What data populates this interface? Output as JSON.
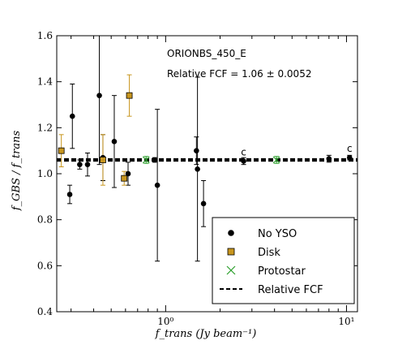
{
  "chart_data": {
    "type": "scatter",
    "title": "",
    "xlabel": "f_trans (Jy beam⁻¹)",
    "ylabel": "f_GBS / f_trans",
    "xscale": "log",
    "xlim": [
      0.25,
      11.5
    ],
    "ylim": [
      0.4,
      1.6
    ],
    "x_ticks": [
      {
        "value": 1,
        "label": "10⁰"
      },
      {
        "value": 10,
        "label": "10¹"
      }
    ],
    "y_ticks": [
      0.4,
      0.6,
      0.8,
      1.0,
      1.2,
      1.4,
      1.6
    ],
    "y_tick_labels": [
      "0.4",
      "0.6",
      "0.8",
      "1.0",
      "1.2",
      "1.4",
      "1.6"
    ],
    "annotations": {
      "region": "ORIONBS_450_E",
      "fcf_text": "Relative FCF = 1.06 ± 0.0052"
    },
    "relative_fcf": {
      "value": 1.06,
      "uncertainty": 0.0052,
      "band_color": "#000000"
    },
    "legend_placement": "bottom-right",
    "series": [
      {
        "name": "No YSO",
        "marker": "circle",
        "color": "#000000",
        "points": [
          {
            "x": 0.295,
            "y": 0.91,
            "err": 0.04
          },
          {
            "x": 0.305,
            "y": 1.25,
            "err": 0.14
          },
          {
            "x": 0.335,
            "y": 1.04,
            "err": 0.02
          },
          {
            "x": 0.37,
            "y": 1.04,
            "err": 0.05
          },
          {
            "x": 0.43,
            "y": 1.34,
            "err": 0.3
          },
          {
            "x": 0.45,
            "y": 1.07,
            "err": 0.1
          },
          {
            "x": 0.52,
            "y": 1.14,
            "err": 0.2
          },
          {
            "x": 0.62,
            "y": 1.0,
            "err": 0.05
          },
          {
            "x": 0.87,
            "y": 1.06,
            "err": 0.01
          },
          {
            "x": 0.9,
            "y": 0.95,
            "err": 0.33
          },
          {
            "x": 1.48,
            "y": 1.1,
            "err": 0.06
          },
          {
            "x": 1.5,
            "y": 1.02,
            "err": 0.4
          },
          {
            "x": 1.62,
            "y": 0.87,
            "err": 0.1
          },
          {
            "x": 2.7,
            "y": 1.055,
            "err": 0.015
          },
          {
            "x": 8.0,
            "y": 1.065,
            "err": 0.015
          },
          {
            "x": 10.4,
            "y": 1.07,
            "err": 0.01
          }
        ]
      },
      {
        "name": "Disk",
        "marker": "square",
        "color": "#c8961e",
        "points": [
          {
            "x": 0.265,
            "y": 1.1,
            "err": 0.07
          },
          {
            "x": 0.45,
            "y": 1.06,
            "err": 0.11
          },
          {
            "x": 0.59,
            "y": 0.98,
            "err": 0.03
          },
          {
            "x": 0.63,
            "y": 1.34,
            "err": 0.09
          }
        ]
      },
      {
        "name": "Protostar",
        "marker": "x",
        "color": "#2ca02c",
        "points": [
          {
            "x": 0.78,
            "y": 1.06,
            "err": 0.015
          },
          {
            "x": 4.1,
            "y": 1.06,
            "err": 0.015
          }
        ]
      },
      {
        "name": "Relative FCF",
        "marker": "dashed-line",
        "color": "#000000",
        "points": []
      }
    ],
    "point_labels": [
      {
        "x": 2.7,
        "y": 1.055,
        "text": "c"
      },
      {
        "x": 10.4,
        "y": 1.07,
        "text": "c"
      }
    ]
  }
}
